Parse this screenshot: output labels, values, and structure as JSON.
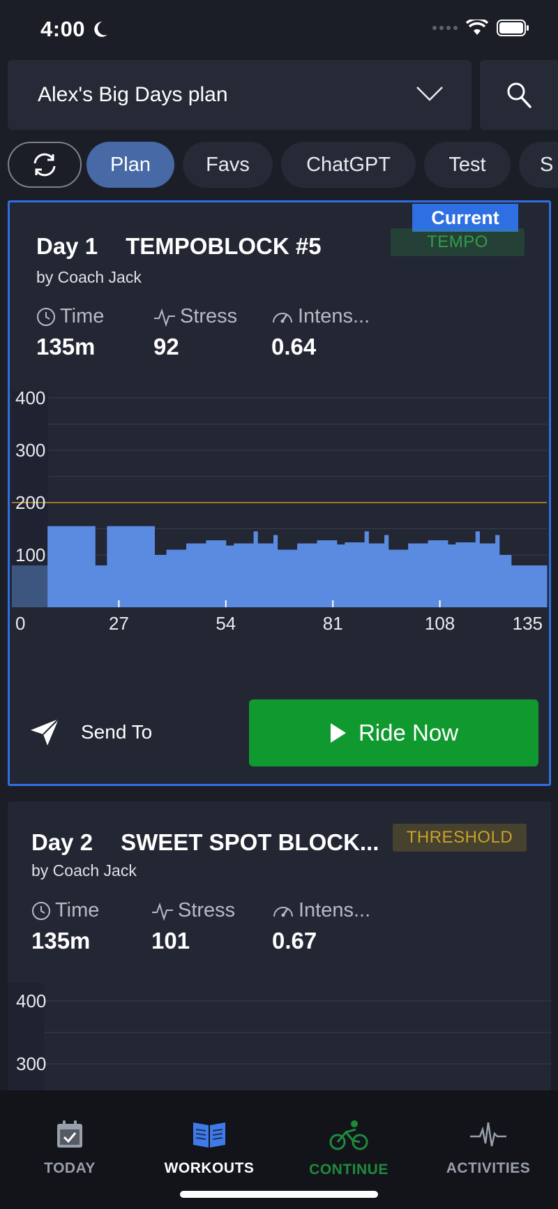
{
  "status": {
    "time": "4:00"
  },
  "plan": {
    "name": "Alex's Big Days plan"
  },
  "tabs": [
    {
      "label": "Plan"
    },
    {
      "label": "Favs"
    },
    {
      "label": "ChatGPT"
    },
    {
      "label": "Test"
    },
    {
      "label": "S"
    }
  ],
  "workouts": [
    {
      "current_label": "Current",
      "day": "Day 1",
      "title": "TEMPOBLOCK #5",
      "author": "by Coach Jack",
      "zone": "TEMPO",
      "zone_color": "#2f9e46",
      "metrics": {
        "time_label": "Time",
        "time_value": "135m",
        "stress_label": "Stress",
        "stress_value": "92",
        "intensity_label": "Intens...",
        "intensity_value": "0.64"
      },
      "send_label": "Send To",
      "ride_label": "Ride Now"
    },
    {
      "day": "Day 2",
      "title": "SWEET SPOT BLOCK...",
      "author": "by Coach Jack",
      "zone": "THRESHOLD",
      "zone_color": "#c9a227",
      "metrics": {
        "time_label": "Time",
        "time_value": "135m",
        "stress_label": "Stress",
        "stress_value": "101",
        "intensity_label": "Intens...",
        "intensity_value": "0.67"
      }
    }
  ],
  "chart_data": [
    {
      "type": "area",
      "y_ticks": [
        "400",
        "300",
        "200",
        "100"
      ],
      "x_ticks": [
        "0",
        "27",
        "54",
        "81",
        "108",
        "135"
      ],
      "xlim": [
        0,
        135
      ],
      "ylim": [
        0,
        400
      ],
      "reference_line": 200,
      "reference_color": "#a07a2a",
      "fill_color": "#5b8be0",
      "segments": [
        [
          0,
          9,
          80
        ],
        [
          9,
          21,
          155
        ],
        [
          21,
          24,
          80
        ],
        [
          24,
          36,
          155
        ],
        [
          36,
          39,
          100
        ],
        [
          39,
          44,
          110
        ],
        [
          44,
          49,
          122
        ],
        [
          49,
          54,
          128
        ],
        [
          54,
          56,
          118
        ],
        [
          56,
          61,
          122
        ],
        [
          61,
          62,
          145
        ],
        [
          62,
          66,
          122
        ],
        [
          66,
          67,
          138
        ],
        [
          67,
          72,
          110
        ],
        [
          72,
          77,
          122
        ],
        [
          77,
          82,
          128
        ],
        [
          82,
          84,
          120
        ],
        [
          84,
          89,
          124
        ],
        [
          89,
          90,
          145
        ],
        [
          90,
          94,
          122
        ],
        [
          94,
          95,
          138
        ],
        [
          95,
          100,
          110
        ],
        [
          100,
          105,
          122
        ],
        [
          105,
          110,
          128
        ],
        [
          110,
          112,
          120
        ],
        [
          112,
          117,
          124
        ],
        [
          117,
          118,
          145
        ],
        [
          118,
          122,
          122
        ],
        [
          122,
          123,
          138
        ],
        [
          123,
          126,
          100
        ],
        [
          126,
          130,
          80
        ],
        [
          130,
          135,
          80
        ]
      ]
    },
    {
      "type": "area",
      "y_ticks": [
        "400",
        "300"
      ],
      "ylim": [
        0,
        400
      ]
    }
  ],
  "nav": [
    {
      "label": "TODAY",
      "color": "#9aa0ab"
    },
    {
      "label": "WORKOUTS",
      "color": "#ffffff"
    },
    {
      "label": "CONTINUE",
      "color": "#1f8a3c"
    },
    {
      "label": "ACTIVITIES",
      "color": "#9aa0ab"
    }
  ]
}
